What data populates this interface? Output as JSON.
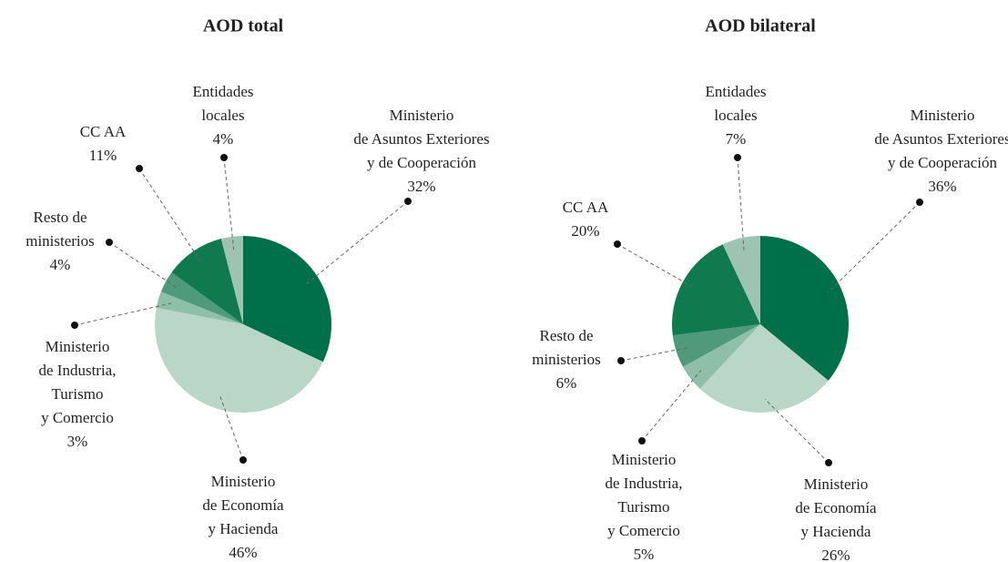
{
  "chart_data": [
    {
      "type": "pie",
      "title": "AOD total",
      "categories": [
        [
          "Ministerio",
          "de Asuntos Exteriores",
          "y de Cooperación"
        ],
        [
          "Ministerio",
          "de Economía",
          "y Hacienda"
        ],
        [
          "Ministerio",
          "de Industria,",
          "Turismo",
          "y Comercio"
        ],
        [
          "Resto de",
          "ministerios"
        ],
        [
          "CC AA"
        ],
        [
          "Entidades",
          "locales"
        ]
      ],
      "values": [
        32,
        46,
        3,
        4,
        11,
        4
      ],
      "value_labels": [
        "32%",
        "46%",
        "3%",
        "4%",
        "11%",
        "4%"
      ],
      "colors": [
        "#00704a",
        "#b9d7c9",
        "#8ebfa9",
        "#4e9a7b",
        "#0f7a4e",
        "#9fc3b3"
      ]
    },
    {
      "type": "pie",
      "title": "AOD bilateral",
      "categories": [
        [
          "Ministerio",
          "de Asuntos Exteriores",
          "y de Cooperación"
        ],
        [
          "Ministerio",
          "de Economía",
          "y Hacienda"
        ],
        [
          "Ministerio",
          "de Industria,",
          "Turismo",
          "y Comercio"
        ],
        [
          "Resto de",
          "ministerios"
        ],
        [
          "CC AA"
        ],
        [
          "Entidades",
          "locales"
        ]
      ],
      "values": [
        36,
        26,
        5,
        6,
        20,
        7
      ],
      "value_labels": [
        "36%",
        "26%",
        "5%",
        "6%",
        "20%",
        "7%"
      ],
      "colors": [
        "#00704a",
        "#b9d7c9",
        "#8ebfa9",
        "#4e9a7b",
        "#0f7a4e",
        "#9fc3b3"
      ]
    }
  ]
}
